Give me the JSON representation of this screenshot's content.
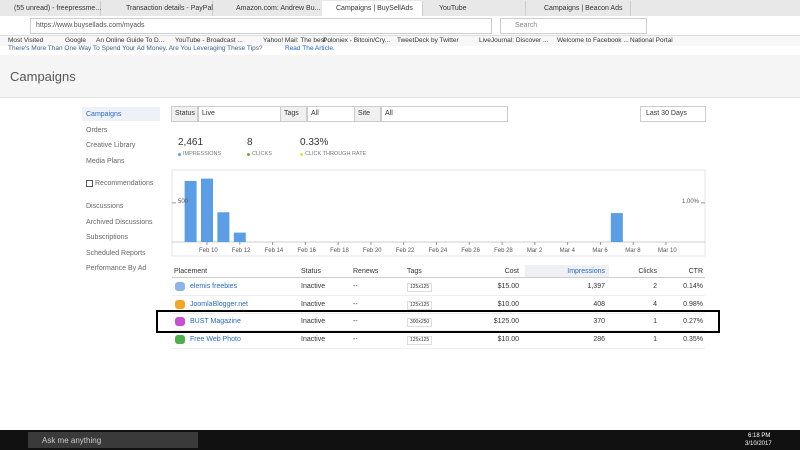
{
  "browser": {
    "tabs": [
      "(55 unread) - freepressme...",
      "Transaction details - PayPal",
      "Amazon.com: Andrew Bu...",
      "Campaigns | BuySellAds",
      "YouTube",
      "Campaigns | Beacon Ads"
    ],
    "url": "https://www.buysellads.com/myads",
    "search": "Search",
    "bookmarks": [
      "Most Visited",
      "Google",
      "An Online Guide To D...",
      "YouTube - Broadcast ...",
      "Yahoo! Mail: The best ...",
      "Poloniex - Bitcoin/Cry...",
      "TweetDeck by Twitter",
      "LiveJournal: Discover ...",
      "Welcome to Facebook ...",
      "National Portal"
    ]
  },
  "banner": {
    "text": "There's More Than One Way To Spend Your Ad Money. Are You Leveraging These Tips?",
    "link": "Read The Article."
  },
  "header": {
    "title": "Campaigns"
  },
  "sidebar": {
    "items": [
      "Campaigns",
      "Orders",
      "Creative Library",
      "Media Plans"
    ],
    "recommendations": "Recommendations",
    "more": [
      "Discussions",
      "Archived Discussions",
      "Subscriptions",
      "Scheduled Reports",
      "Performance By Ad"
    ]
  },
  "filters": {
    "status_label": "Status",
    "status": "Live",
    "tags_label": "Tags",
    "tags": "All",
    "site_label": "Site",
    "site": "All",
    "range": "Last 30 Days"
  },
  "stats": [
    {
      "value": "2,461",
      "label": "IMPRESSIONS"
    },
    {
      "value": "8",
      "label": "CLICKS"
    },
    {
      "value": "0.33%",
      "label": "CLICK THROUGH RATE"
    }
  ],
  "chart": {
    "xticks": [
      "Feb 10",
      "Feb 12",
      "Feb 14",
      "Feb 16",
      "Feb 18",
      "Feb 20",
      "Feb 22",
      "Feb 24",
      "Feb 26",
      "Feb 28",
      "Mar 2",
      "Mar 4",
      "Mar 6",
      "Mar 8",
      "Mar 10"
    ],
    "bars": {
      "x": [
        "Feb 9",
        "Feb 10",
        "Feb 11",
        "Feb 12",
        "Mar 7"
      ],
      "values": [
        780,
        810,
        380,
        120,
        370
      ],
      "color": "#5b9ee6"
    },
    "ylim": [
      0,
      920
    ],
    "yticks": [
      500
    ],
    "y2lim": [
      0,
      1.84
    ],
    "y2ticks": [
      {
        "value": 1,
        "label": "1.00%"
      }
    ]
  },
  "table": {
    "headers": [
      "Placement",
      "Status",
      "Renews",
      "Tags",
      "Cost",
      "Impressions",
      "Clicks",
      "CTR"
    ],
    "rows": [
      [
        "elemis freebies",
        "Inactive",
        "--",
        "125x125",
        "$15.00",
        "1,397",
        "2",
        "0.14%"
      ],
      [
        "JoomlaBlogger.net",
        "Inactive",
        "--",
        "125x125",
        "$10.00",
        "408",
        "4",
        "0.98%"
      ],
      [
        "BUST Magazine",
        "Inactive",
        "--",
        "300x250",
        "$125.00",
        "370",
        "1",
        "0.27%"
      ],
      [
        "Free Web Photo",
        "Inactive",
        "--",
        "125x125",
        "$10.00",
        "286",
        "1",
        "0.35%"
      ]
    ]
  },
  "taskbar": {
    "search": "Ask me anything",
    "time": "6:18 PM",
    "date": "3/10/2017"
  }
}
